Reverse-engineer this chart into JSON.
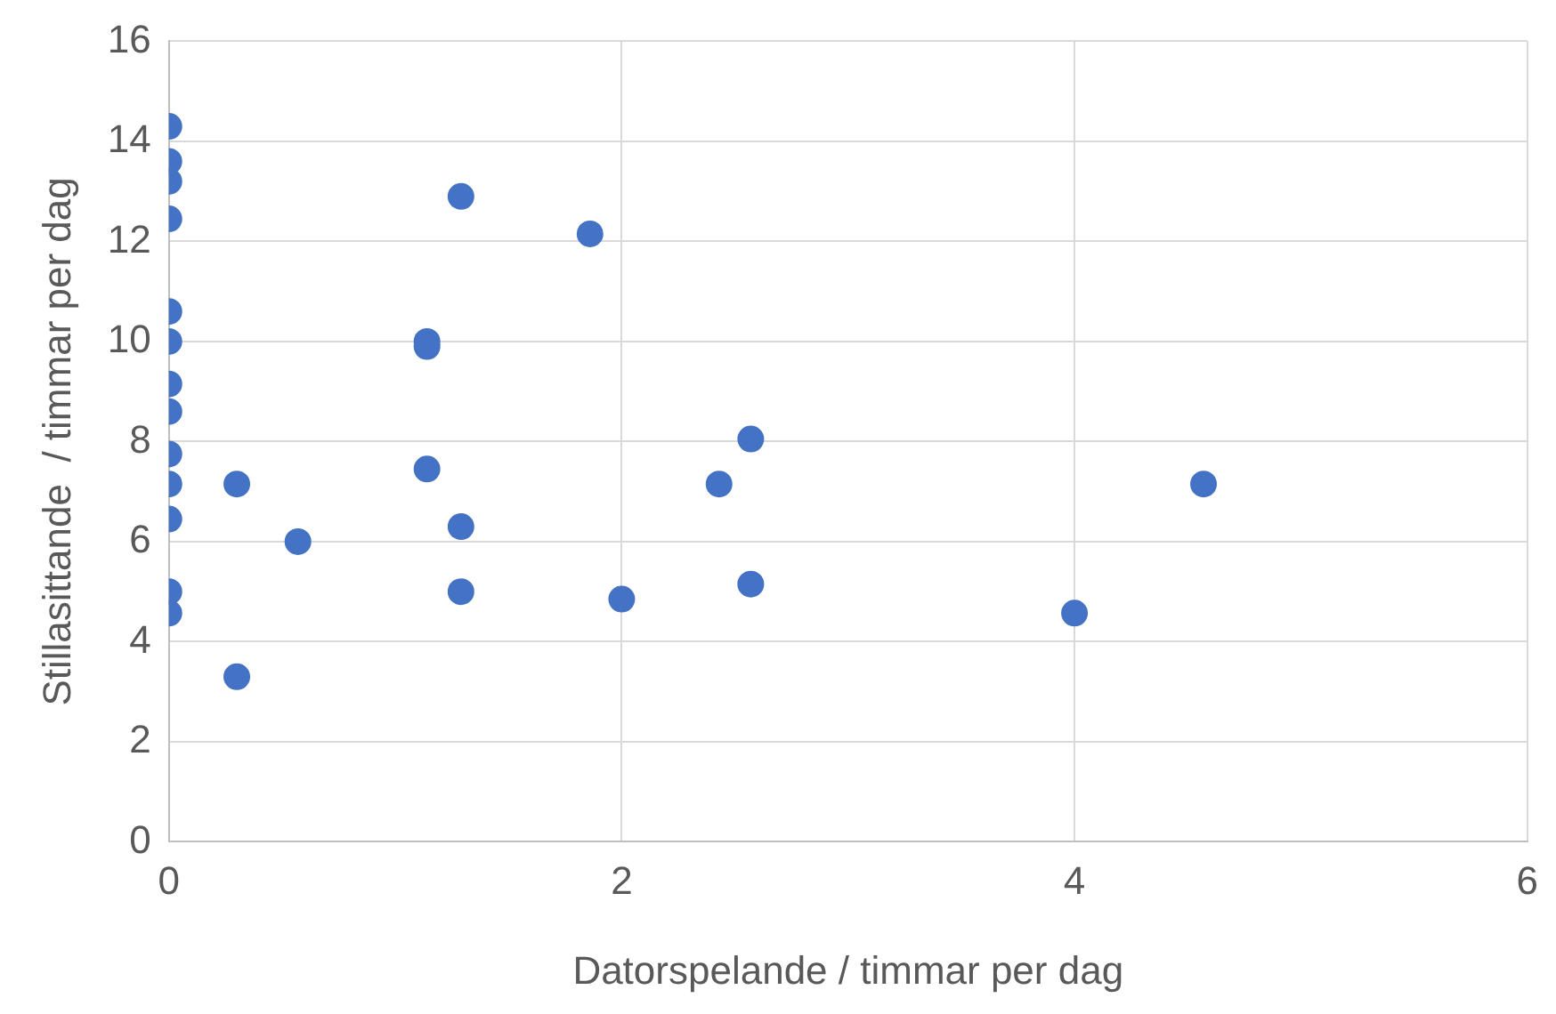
{
  "chart_data": {
    "type": "scatter",
    "xlabel": "Datorspelande / timmar per dag",
    "ylabel": "Stillasittande  / timmar per dag",
    "xlim": [
      0,
      6
    ],
    "xticks": [
      0,
      2,
      4,
      6
    ],
    "ylim": [
      0,
      16
    ],
    "yticks": [
      0,
      2,
      4,
      6,
      8,
      10,
      12,
      14,
      16
    ],
    "grid": true,
    "marker": "circle",
    "series": [
      {
        "color": "#4472c4",
        "x": [
          0,
          0,
          0,
          0,
          0,
          0,
          0,
          0,
          0,
          0,
          0,
          0,
          0,
          0.3,
          0.3,
          0.57,
          1.14,
          1.14,
          1.14,
          1.29,
          1.29,
          1.29,
          1.86,
          2,
          2.43,
          2.57,
          2.57,
          4,
          4.57
        ],
        "values": [
          14.3,
          13.6,
          13.2,
          12.45,
          10.6,
          10,
          9.15,
          8.6,
          7.75,
          7.15,
          6.45,
          5,
          4.57,
          7.15,
          3.3,
          6,
          10,
          9.9,
          7.45,
          12.9,
          6.3,
          5,
          12.15,
          4.85,
          7.15,
          8.05,
          5.15,
          4.57,
          7.15
        ]
      }
    ]
  }
}
